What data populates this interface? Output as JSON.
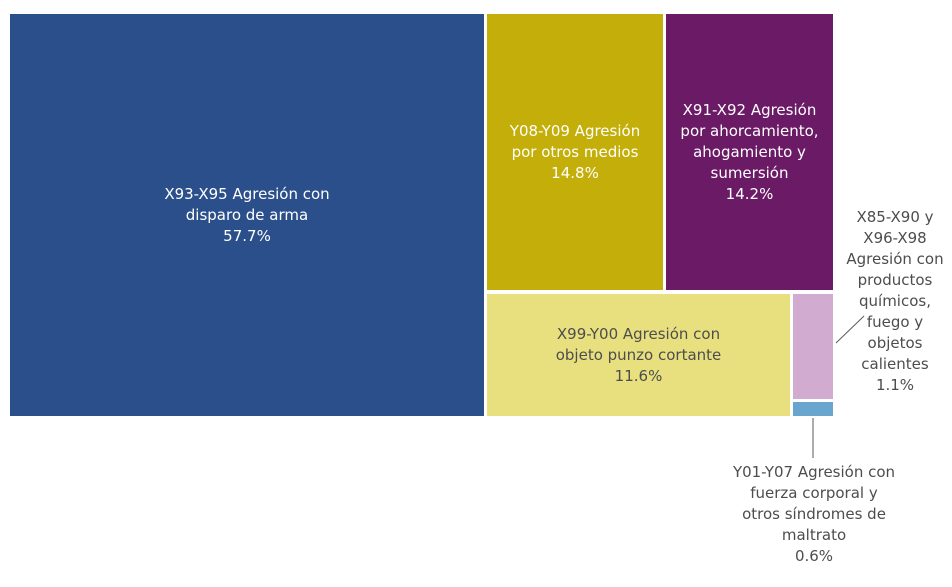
{
  "chart_data": {
    "type": "treemap",
    "title": "",
    "items": [
      {
        "label_lines": [
          "X93-X95 Agresión con",
          "disparo de arma"
        ],
        "value": 57.7,
        "value_text": "57.7%",
        "color": "#2a4f8a",
        "text_color": "#ffffff"
      },
      {
        "label_lines": [
          "Y08-Y09 Agresión",
          "por otros medios"
        ],
        "value": 14.8,
        "value_text": "14.8%",
        "color": "#c4ae0a",
        "text_color": "#ffffff"
      },
      {
        "label_lines": [
          "X91-X92 Agresión",
          "por ahorcamiento,",
          "ahogamiento y",
          "sumersión"
        ],
        "value": 14.2,
        "value_text": "14.2%",
        "color": "#6b1a66",
        "text_color": "#ffffff"
      },
      {
        "label_lines": [
          "X99-Y00 Agresión con",
          "objeto punzo cortante"
        ],
        "value": 11.6,
        "value_text": "11.6%",
        "color": "#e8e07f",
        "text_color": "#4d4d4d"
      },
      {
        "label_lines": [
          "X85-X90 y",
          "X96-X98",
          "Agresión con",
          "productos",
          "químicos,",
          "fuego y",
          "objetos",
          "calientes"
        ],
        "value": 1.1,
        "value_text": "1.1%",
        "color": "#d2abd0",
        "text_color": "#4d4d4d"
      },
      {
        "label_lines": [
          "Y01-Y07 Agresión con",
          "fuerza corporal y",
          "otros síndromes de",
          "maltrato"
        ],
        "value": 0.6,
        "value_text": "0.6%",
        "color": "#6aa5cf",
        "text_color": "#4d4d4d"
      }
    ]
  }
}
